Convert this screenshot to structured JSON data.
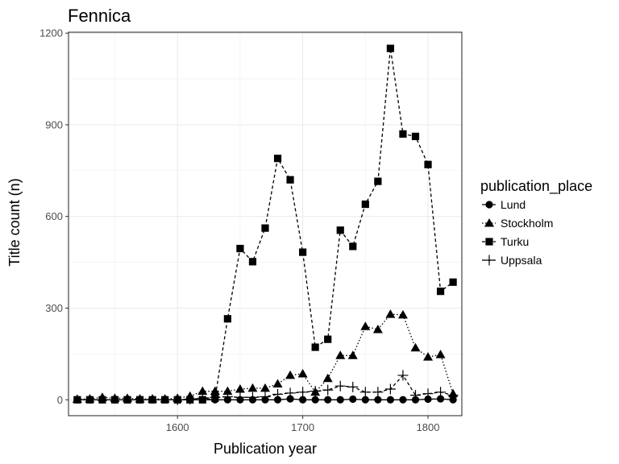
{
  "chart_data": {
    "type": "line",
    "title": "Fennica",
    "xlabel": "Publication year",
    "ylabel": "Title count (n)",
    "xlim": [
      1513,
      1827
    ],
    "ylim": [
      -52,
      1203
    ],
    "x_ticks": [
      1600,
      1700,
      1800
    ],
    "x_tick_labels": [
      "1600",
      "1700",
      "1800"
    ],
    "y_ticks": [
      0,
      300,
      600,
      900,
      1200
    ],
    "y_tick_labels": [
      "0",
      "300",
      "600",
      "900",
      "1200"
    ],
    "grid": true,
    "legend": {
      "title": "publication_place",
      "position": "right"
    },
    "series": [
      {
        "name": "Lund",
        "marker": "circle",
        "dash": "solid",
        "x": [
          1520,
          1530,
          1540,
          1550,
          1560,
          1570,
          1580,
          1590,
          1600,
          1610,
          1620,
          1630,
          1640,
          1650,
          1660,
          1670,
          1680,
          1690,
          1700,
          1710,
          1720,
          1730,
          1740,
          1750,
          1760,
          1770,
          1780,
          1790,
          1800,
          1810,
          1820
        ],
        "y": [
          0,
          0,
          0,
          0,
          0,
          0,
          0,
          0,
          0,
          0,
          0,
          0,
          0,
          0,
          0,
          0,
          0,
          3,
          0,
          0,
          0,
          0,
          2,
          0,
          0,
          0,
          0,
          0,
          2,
          3,
          0
        ]
      },
      {
        "name": "Stockholm",
        "marker": "triangle",
        "dash": "dotted",
        "x": [
          1520,
          1530,
          1540,
          1550,
          1560,
          1570,
          1580,
          1590,
          1600,
          1610,
          1620,
          1630,
          1640,
          1650,
          1660,
          1670,
          1680,
          1690,
          1700,
          1710,
          1720,
          1730,
          1740,
          1750,
          1760,
          1770,
          1780,
          1790,
          1800,
          1810,
          1820
        ],
        "y": [
          2,
          3,
          8,
          5,
          5,
          3,
          3,
          3,
          5,
          12,
          28,
          28,
          28,
          35,
          38,
          38,
          52,
          80,
          85,
          25,
          70,
          145,
          145,
          240,
          230,
          280,
          278,
          170,
          140,
          148,
          20
        ]
      },
      {
        "name": "Turku",
        "marker": "square",
        "dash": "dashed",
        "x": [
          1520,
          1530,
          1540,
          1550,
          1560,
          1570,
          1580,
          1590,
          1600,
          1610,
          1620,
          1630,
          1640,
          1650,
          1660,
          1670,
          1680,
          1690,
          1700,
          1710,
          1720,
          1730,
          1740,
          1750,
          1760,
          1770,
          1780,
          1790,
          1800,
          1810,
          1820
        ],
        "y": [
          0,
          0,
          0,
          0,
          0,
          0,
          0,
          0,
          0,
          0,
          0,
          5,
          265,
          495,
          452,
          562,
          790,
          720,
          483,
          172,
          198,
          555,
          502,
          640,
          715,
          1150,
          870,
          862,
          770,
          355,
          385
        ]
      },
      {
        "name": "Uppsala",
        "marker": "plus",
        "dash": "dashed",
        "x": [
          1600,
          1610,
          1620,
          1630,
          1640,
          1650,
          1660,
          1670,
          1680,
          1690,
          1700,
          1710,
          1720,
          1730,
          1740,
          1750,
          1760,
          1770,
          1780,
          1790,
          1800,
          1810,
          1820
        ],
        "y": [
          0,
          2,
          5,
          8,
          10,
          8,
          8,
          10,
          18,
          22,
          25,
          28,
          32,
          45,
          42,
          25,
          25,
          35,
          80,
          15,
          20,
          25,
          15
        ]
      }
    ]
  }
}
